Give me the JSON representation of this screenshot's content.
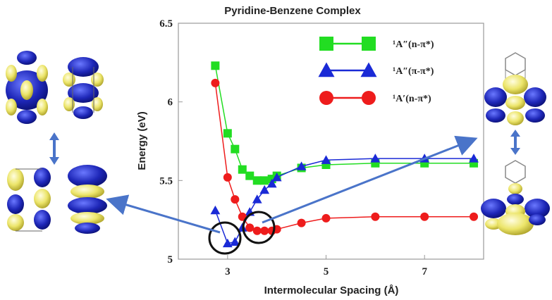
{
  "chart_data": {
    "type": "line",
    "title": "Pyridine-Benzene Complex",
    "xlabel": "Intermolecular Spacing (Å)",
    "ylabel": "Energy (eV)",
    "xlim": [
      2.0,
      8.2
    ],
    "ylim": [
      5.0,
      6.5
    ],
    "xticks": [
      "3",
      "5",
      "7"
    ],
    "xtick_values": [
      3,
      5,
      7
    ],
    "yticks": [
      "5",
      "5.5",
      "6",
      "6.5"
    ],
    "ytick_values": [
      5.0,
      5.5,
      6.0,
      6.5
    ],
    "grid": false,
    "legend_position": "top-right",
    "series": [
      {
        "name": "¹A″(n-π*)",
        "color": "#22dd22",
        "marker": "square",
        "x": [
          2.75,
          3.0,
          3.15,
          3.3,
          3.45,
          3.6,
          3.75,
          3.9,
          4.0,
          4.5,
          5.0,
          6.0,
          7.0,
          8.0
        ],
        "y": [
          6.23,
          5.8,
          5.7,
          5.57,
          5.53,
          5.5,
          5.5,
          5.51,
          5.53,
          5.58,
          5.6,
          5.61,
          5.61,
          5.61
        ]
      },
      {
        "name": "¹A″(π-π*)",
        "color": "#1a2ad6",
        "marker": "triangle",
        "x": [
          2.75,
          3.0,
          3.15,
          3.3,
          3.45,
          3.6,
          3.75,
          3.9,
          4.0,
          4.5,
          5.0,
          6.0,
          7.0,
          8.0
        ],
        "y": [
          5.31,
          5.1,
          5.11,
          5.2,
          5.3,
          5.38,
          5.44,
          5.48,
          5.52,
          5.59,
          5.63,
          5.64,
          5.64,
          5.64
        ]
      },
      {
        "name": "¹A′(n-π*)",
        "color": "#ee1c1c",
        "marker": "circle",
        "x": [
          2.75,
          3.0,
          3.15,
          3.3,
          3.45,
          3.6,
          3.75,
          3.9,
          4.0,
          4.5,
          5.0,
          6.0,
          7.0,
          8.0
        ],
        "y": [
          6.12,
          5.52,
          5.38,
          5.27,
          5.2,
          5.18,
          5.18,
          5.18,
          5.19,
          5.23,
          5.26,
          5.27,
          5.27,
          5.27
        ]
      }
    ]
  },
  "legend_items": [
    {
      "label": "¹A″(n-π*)",
      "color": "#22dd22",
      "marker": "square"
    },
    {
      "label": "¹A″(π-π*)",
      "color": "#1a2ad6",
      "marker": "triangle"
    },
    {
      "label": "¹A′(n-π*)",
      "color": "#ee1c1c",
      "marker": "circle"
    }
  ],
  "colors": {
    "orbital_blue": "#1e27b8",
    "orbital_yellow": "#f0ec8a",
    "arrow": "#4a74c9"
  }
}
